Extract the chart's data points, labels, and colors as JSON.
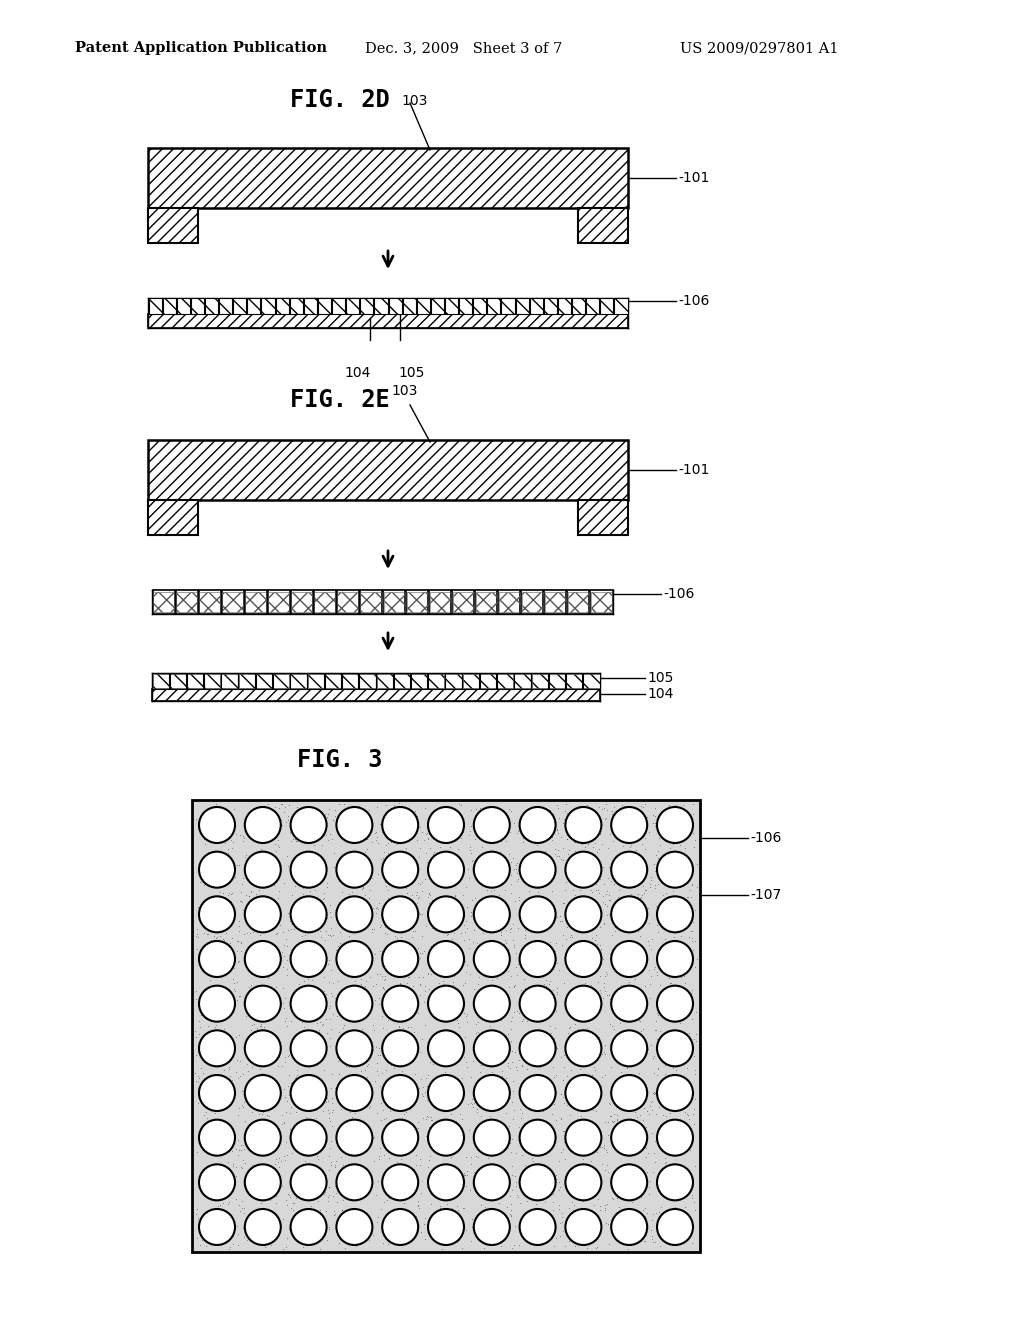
{
  "bg_color": "#ffffff",
  "header_left": "Patent Application Publication",
  "header_mid": "Dec. 3, 2009   Sheet 3 of 7",
  "header_right": "US 2009/0297801 A1",
  "fig2d_title": "FIG. 2D",
  "fig2e_title": "FIG. 2E",
  "fig3_title": "FIG. 3",
  "label_101": "-101",
  "label_103": "103",
  "label_104": "104",
  "label_105": "105",
  "label_106": "-106",
  "label_107": "-107"
}
